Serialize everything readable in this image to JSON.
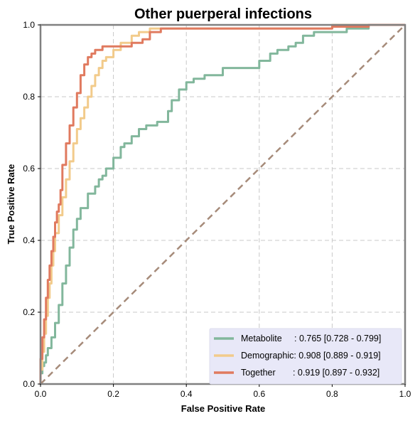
{
  "chart_data": {
    "type": "line",
    "title": "Other puerperal infections",
    "xlabel": "False Positive Rate",
    "ylabel": "True Positive Rate",
    "xlim": [
      0,
      1
    ],
    "ylim": [
      0,
      1
    ],
    "x_ticks": [
      "0.0",
      "0.2",
      "0.4",
      "0.6",
      "0.8",
      "1.0"
    ],
    "y_ticks": [
      "0.0",
      "0.2",
      "0.4",
      "0.6",
      "0.8",
      "1.0"
    ],
    "grid": true,
    "legend_position": "bottom-right",
    "series": [
      {
        "name": "Metabolite",
        "legend_label": "Metabolite     : 0.765 [0.728 - 0.799]",
        "color": "#82b79c",
        "x": [
          0,
          0.005,
          0.01,
          0.015,
          0.02,
          0.03,
          0.04,
          0.05,
          0.06,
          0.07,
          0.08,
          0.09,
          0.1,
          0.11,
          0.12,
          0.13,
          0.15,
          0.16,
          0.17,
          0.18,
          0.2,
          0.22,
          0.23,
          0.25,
          0.27,
          0.29,
          0.31,
          0.32,
          0.35,
          0.36,
          0.38,
          0.4,
          0.42,
          0.45,
          0.5,
          0.55,
          0.6,
          0.63,
          0.65,
          0.68,
          0.7,
          0.72,
          0.75,
          0.8,
          0.84,
          0.84,
          0.9,
          1.0
        ],
        "y": [
          0,
          0.03,
          0.05,
          0.06,
          0.08,
          0.1,
          0.13,
          0.17,
          0.22,
          0.28,
          0.33,
          0.38,
          0.43,
          0.46,
          0.49,
          0.49,
          0.53,
          0.55,
          0.57,
          0.58,
          0.6,
          0.63,
          0.66,
          0.67,
          0.69,
          0.71,
          0.72,
          0.72,
          0.73,
          0.76,
          0.79,
          0.82,
          0.84,
          0.85,
          0.86,
          0.88,
          0.88,
          0.9,
          0.92,
          0.93,
          0.94,
          0.95,
          0.97,
          0.98,
          0.98,
          0.99,
          0.99,
          1.0
        ]
      },
      {
        "name": "Demographic",
        "legend_label": "Demographic: 0.908 [0.889 - 0.919]",
        "color": "#f2cb8b",
        "x": [
          0,
          0.005,
          0.01,
          0.015,
          0.02,
          0.025,
          0.03,
          0.035,
          0.04,
          0.05,
          0.06,
          0.07,
          0.08,
          0.09,
          0.1,
          0.11,
          0.12,
          0.13,
          0.14,
          0.15,
          0.16,
          0.17,
          0.18,
          0.2,
          0.22,
          0.25,
          0.27,
          0.3,
          0.33,
          0.35,
          0.4,
          0.5,
          0.6,
          0.7,
          0.8,
          0.9,
          1.0
        ],
        "y": [
          0,
          0.04,
          0.09,
          0.14,
          0.19,
          0.24,
          0.28,
          0.33,
          0.37,
          0.42,
          0.47,
          0.52,
          0.57,
          0.62,
          0.67,
          0.71,
          0.74,
          0.77,
          0.8,
          0.83,
          0.86,
          0.88,
          0.9,
          0.91,
          0.93,
          0.95,
          0.97,
          0.98,
          0.99,
          0.99,
          0.99,
          0.99,
          0.99,
          0.99,
          0.99,
          1.0,
          1.0
        ]
      },
      {
        "name": "Together",
        "legend_label": "Together       : 0.919 [0.897 - 0.932]",
        "color": "#e07a5f",
        "x": [
          0,
          0.005,
          0.01,
          0.015,
          0.02,
          0.025,
          0.03,
          0.035,
          0.04,
          0.045,
          0.05,
          0.055,
          0.06,
          0.07,
          0.08,
          0.09,
          0.1,
          0.11,
          0.12,
          0.13,
          0.14,
          0.15,
          0.16,
          0.17,
          0.18,
          0.2,
          0.25,
          0.28,
          0.3,
          0.33,
          0.35,
          0.4,
          0.5,
          0.6,
          0.7,
          0.8,
          0.9,
          1.0
        ],
        "y": [
          0,
          0.07,
          0.13,
          0.18,
          0.24,
          0.29,
          0.33,
          0.37,
          0.41,
          0.45,
          0.48,
          0.5,
          0.54,
          0.61,
          0.67,
          0.72,
          0.77,
          0.81,
          0.86,
          0.89,
          0.91,
          0.92,
          0.93,
          0.93,
          0.94,
          0.94,
          0.94,
          0.95,
          0.96,
          0.98,
          0.99,
          0.99,
          0.99,
          0.99,
          0.99,
          0.99,
          0.995,
          1.0
        ]
      },
      {
        "name": "Chance",
        "color": "#a68b7a",
        "dashed": true,
        "x": [
          0,
          1
        ],
        "y": [
          0,
          1
        ]
      }
    ]
  }
}
